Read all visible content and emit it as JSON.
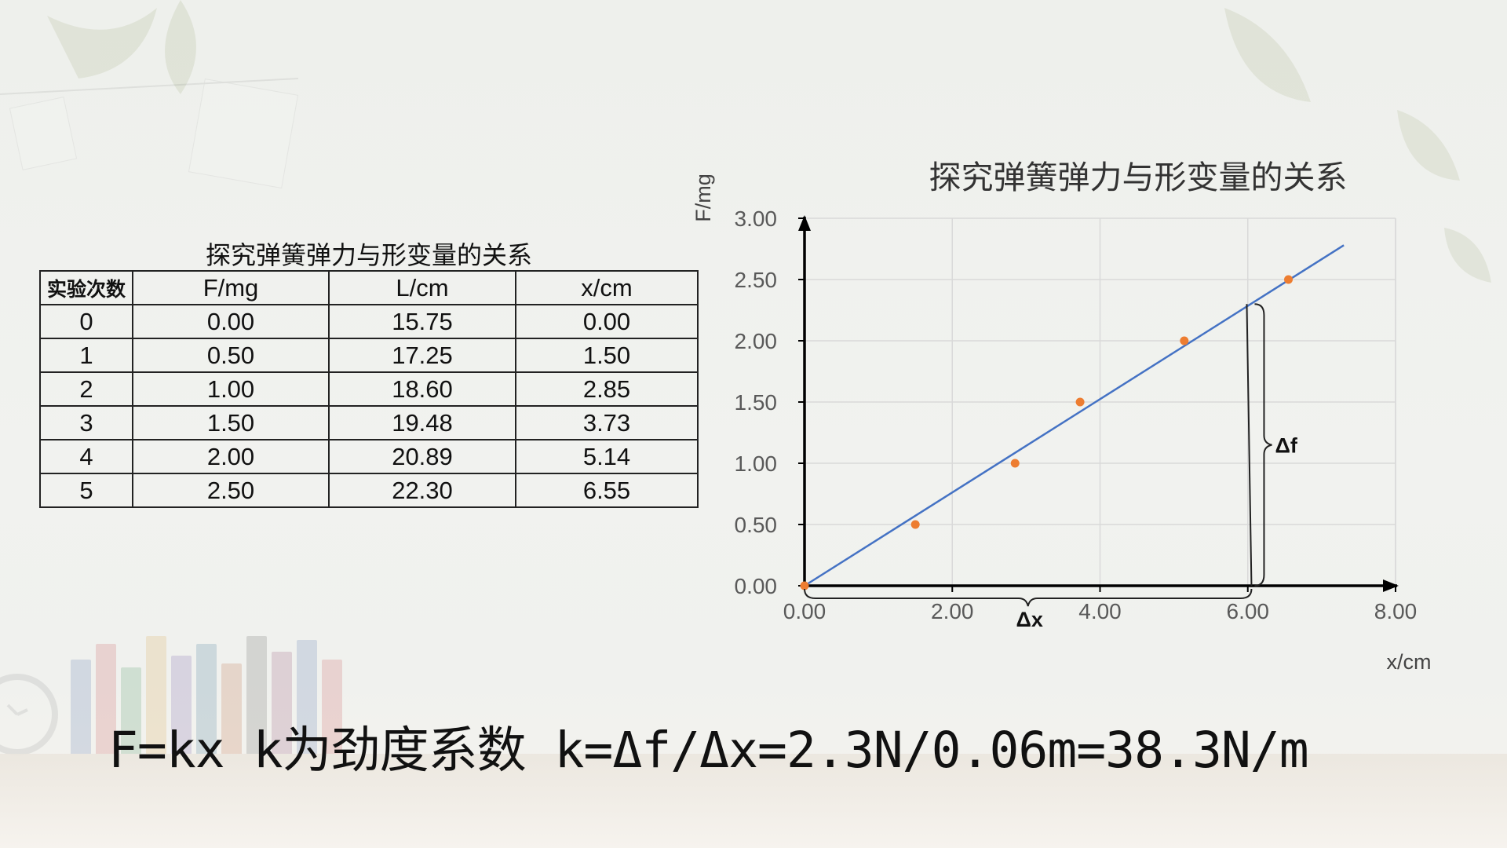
{
  "table": {
    "title": "探究弹簧弹力与形变量的关系",
    "headers": [
      "实验次数",
      "F/mg",
      "L/cm",
      "x/cm"
    ],
    "rows": [
      [
        "0",
        "0.00",
        "15.75",
        "0.00"
      ],
      [
        "1",
        "0.50",
        "17.25",
        "1.50"
      ],
      [
        "2",
        "1.00",
        "18.60",
        "2.85"
      ],
      [
        "3",
        "1.50",
        "19.48",
        "3.73"
      ],
      [
        "4",
        "2.00",
        "20.89",
        "5.14"
      ],
      [
        "5",
        "2.50",
        "22.30",
        "6.55"
      ]
    ]
  },
  "chart_data": {
    "type": "scatter",
    "title": "探究弹簧弹力与形变量的关系",
    "xlabel": "x/cm",
    "ylabel": "F/mg",
    "xlim": [
      0,
      8
    ],
    "ylim": [
      0,
      3
    ],
    "x_ticks": [
      "0.00",
      "2.00",
      "4.00",
      "6.00",
      "8.00"
    ],
    "y_ticks": [
      "0.00",
      "0.50",
      "1.00",
      "1.50",
      "2.00",
      "2.50",
      "3.00"
    ],
    "grid": true,
    "series": [
      {
        "x": [
          0.0,
          1.5,
          2.85,
          3.73,
          5.14,
          6.55
        ],
        "y": [
          0.0,
          0.5,
          1.0,
          1.5,
          2.0,
          2.5
        ],
        "color": "#ed7d31"
      }
    ],
    "trendline": {
      "x": [
        0,
        7.3
      ],
      "y": [
        0,
        2.78
      ],
      "color": "#4472c4"
    },
    "annotations": {
      "delta_f": "Δf",
      "delta_x": "Δx"
    },
    "annotation_points": {
      "x_end": 6.05,
      "y_top": 2.3
    }
  },
  "formula": "F=kx k为劲度系数 k=Δf/Δx=2.3N/0.06m=38.3N/m"
}
